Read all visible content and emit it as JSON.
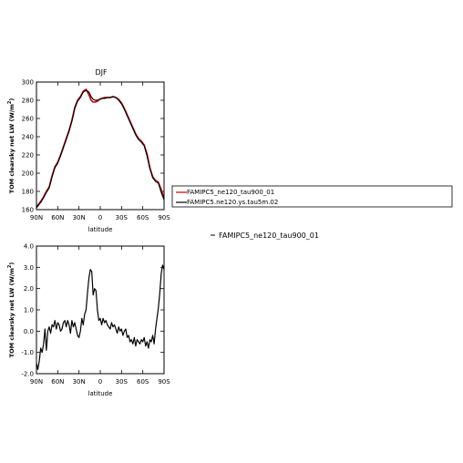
{
  "chart_data": [
    {
      "type": "line",
      "title": "DJF",
      "xlabel": "latitude",
      "ylabel": "TOM clearsky net LW (W/m",
      "ylabel_sup": "2",
      "ylabel_end": ")",
      "xlim": [
        90,
        -90
      ],
      "ylim": [
        160,
        300
      ],
      "xticks": [
        90,
        60,
        30,
        0,
        -30,
        -60,
        -90
      ],
      "xtick_labels": [
        "90N",
        "60N",
        "30N",
        "0",
        "30S",
        "60S",
        "90S"
      ],
      "yticks": [
        160,
        180,
        200,
        220,
        240,
        260,
        280,
        300
      ],
      "ytick_labels": [
        "160",
        "180",
        "200",
        "220",
        "240",
        "260",
        "280",
        "300"
      ],
      "grid": false,
      "legend": "right",
      "series": [
        {
          "name": "FAMIPC5_ne120_tau900_01",
          "color": "#cc0000",
          "x": [
            90,
            87,
            84,
            80,
            76,
            72,
            68,
            64,
            60,
            56,
            52,
            48,
            44,
            40,
            36,
            32,
            28,
            24,
            20,
            16,
            13,
            10,
            7,
            4,
            1,
            -2,
            -6,
            -10,
            -14,
            -18,
            -22,
            -26,
            -30,
            -34,
            -38,
            -42,
            -46,
            -50,
            -54,
            -58,
            -62,
            -66,
            -70,
            -74,
            -78,
            -82,
            -86,
            -90
          ],
          "y": [
            163,
            166,
            169,
            174,
            180,
            185,
            197,
            207,
            212,
            220,
            229,
            238,
            247,
            258,
            272,
            280,
            284,
            290,
            292,
            286,
            280,
            278,
            278,
            279,
            281,
            282,
            283,
            283,
            283,
            284,
            283,
            281,
            277,
            271,
            264,
            257,
            250,
            243,
            238,
            235,
            231,
            221,
            206,
            196,
            192,
            190,
            182,
            172
          ]
        },
        {
          "name": "FAMIPC5.ne120.ys.tau5m.02",
          "color": "#000000",
          "x": [
            90,
            87,
            84,
            80,
            76,
            72,
            68,
            64,
            60,
            56,
            52,
            48,
            44,
            40,
            36,
            32,
            28,
            24,
            20,
            16,
            13,
            10,
            7,
            4,
            1,
            -2,
            -6,
            -10,
            -14,
            -18,
            -22,
            -26,
            -30,
            -34,
            -38,
            -42,
            -46,
            -50,
            -54,
            -58,
            -62,
            -66,
            -70,
            -74,
            -78,
            -82,
            -86,
            -90
          ],
          "y": [
            162,
            165,
            168,
            173,
            179,
            184,
            196,
            206,
            211,
            219,
            228,
            237,
            246,
            257,
            271,
            279,
            283,
            289,
            291,
            289,
            284,
            281,
            280,
            280,
            281,
            282,
            282,
            283,
            283,
            284,
            283,
            280,
            276,
            270,
            263,
            256,
            249,
            242,
            237,
            234,
            230,
            219,
            205,
            195,
            191,
            189,
            179,
            171
          ]
        }
      ]
    },
    {
      "type": "line",
      "title": "",
      "xlabel": "latitude",
      "ylabel": "TOM clearsky net LW (W/m",
      "ylabel_sup": "2",
      "ylabel_end": ")",
      "xlim": [
        90,
        -90
      ],
      "ylim": [
        -2,
        4
      ],
      "xticks": [
        90,
        60,
        30,
        0,
        -30,
        -60,
        -90
      ],
      "xtick_labels": [
        "90N",
        "60N",
        "30N",
        "0",
        "30S",
        "60S",
        "90S"
      ],
      "yticks": [
        -2,
        -1,
        0,
        1,
        2,
        3,
        4
      ],
      "ytick_labels": [
        "-2.0",
        "-1.0",
        "0.0",
        "1.0",
        "2.0",
        "3.0",
        "4.0"
      ],
      "grid": false,
      "legend": "right",
      "series": [
        {
          "name": "FAMIPC5_ne120_tau900_01",
          "color": "#000000",
          "x": [
            90,
            88,
            86,
            84,
            82,
            80,
            78,
            76,
            74,
            72,
            70,
            68,
            66,
            64,
            62,
            60,
            58,
            56,
            54,
            52,
            50,
            48,
            46,
            44,
            42,
            40,
            38,
            36,
            34,
            32,
            30,
            28,
            26,
            24,
            22,
            20,
            18,
            16,
            14,
            12,
            10,
            8,
            6,
            4,
            2,
            0,
            -2,
            -4,
            -6,
            -8,
            -10,
            -12,
            -14,
            -16,
            -18,
            -20,
            -22,
            -24,
            -26,
            -28,
            -30,
            -32,
            -34,
            -36,
            -38,
            -40,
            -42,
            -44,
            -46,
            -48,
            -50,
            -52,
            -54,
            -56,
            -58,
            -60,
            -62,
            -64,
            -66,
            -68,
            -70,
            -72,
            -74,
            -76,
            -78,
            -80,
            -82,
            -84,
            -86,
            -88,
            -90
          ],
          "y": [
            -1.5,
            -1.8,
            -1.4,
            -0.8,
            -1.0,
            -0.6,
            0.1,
            -0.9,
            0.0,
            0.2,
            -0.1,
            0.3,
            0.2,
            0.5,
            0.1,
            0.4,
            0.3,
            0.0,
            0.1,
            0.4,
            0.5,
            0.2,
            0.5,
            0.3,
            -0.1,
            0.5,
            0.2,
            0.4,
            0.1,
            -0.2,
            -0.3,
            0.0,
            0.6,
            0.3,
            0.8,
            1.0,
            1.8,
            2.5,
            2.9,
            2.8,
            1.7,
            2.0,
            1.9,
            1.0,
            0.5,
            0.6,
            0.3,
            0.6,
            0.4,
            0.5,
            0.3,
            0.2,
            0.1,
            0.4,
            0.2,
            0.3,
            0.1,
            -0.1,
            0.2,
            0.0,
            0.1,
            -0.2,
            0.0,
            0.1,
            -0.3,
            -0.2,
            -0.5,
            -0.4,
            -0.6,
            -0.3,
            -0.7,
            -0.4,
            -0.5,
            -0.6,
            -0.4,
            -0.5,
            -0.3,
            -0.7,
            -0.5,
            -0.8,
            -0.4,
            -0.5,
            -0.2,
            -0.6,
            0.1,
            0.6,
            1.1,
            1.8,
            2.7,
            3.1,
            2.9
          ]
        }
      ]
    }
  ],
  "legend_panel": {
    "items": [
      {
        "label": "FAMIPC5_ne120_tau900_01",
        "color": "#cc0000"
      },
      {
        "label": "FAMIPC5.ne120.ys.tau5m.02",
        "color": "#000000"
      }
    ]
  },
  "legend_diff": {
    "label": "FAMIPC5_ne120_tau900_01",
    "color": "#000000"
  }
}
